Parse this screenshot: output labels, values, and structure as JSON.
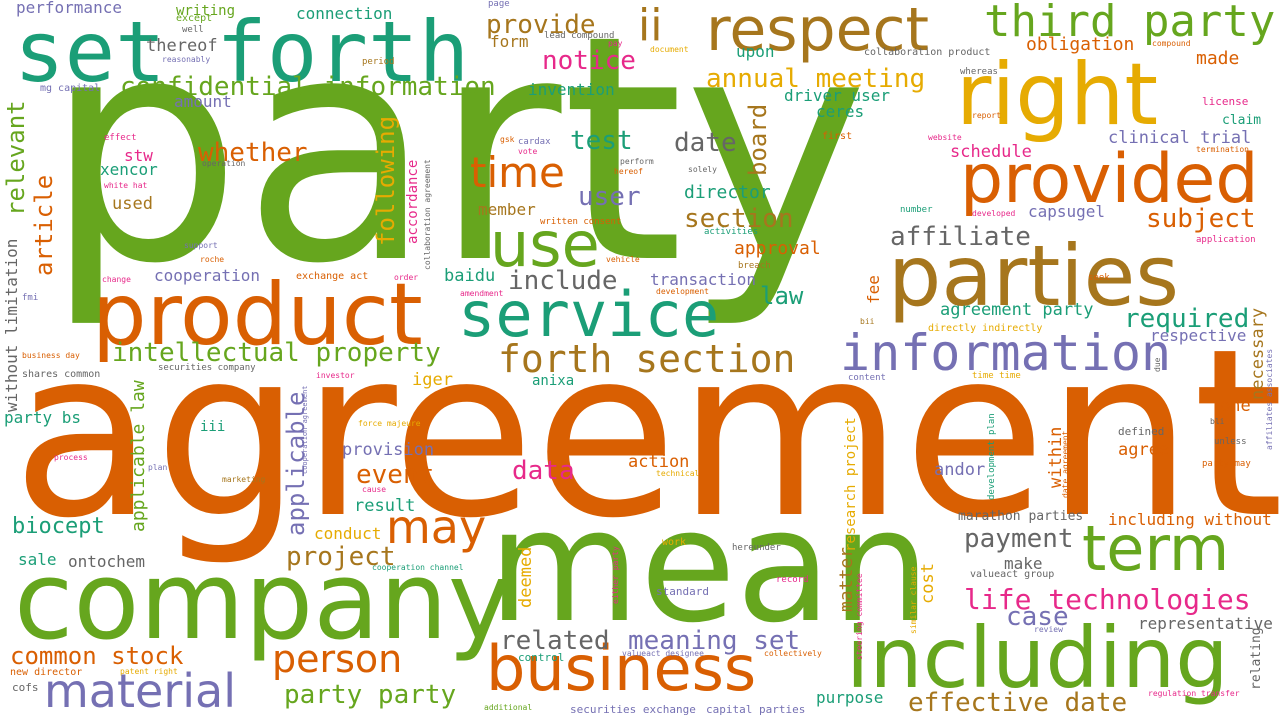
{
  "palette": {
    "green": "#66a61e",
    "orange": "#d95f02",
    "teal": "#1b9e77",
    "purple": "#7570b3",
    "gold": "#e6ab02",
    "brown": "#a6761d",
    "pink": "#e7298a",
    "gray": "#666666"
  },
  "words": [
    "party",
    "agreement",
    "mean",
    "company",
    "set forth",
    "including",
    "product",
    "parties",
    "respect",
    "right",
    "business",
    "provided",
    "service",
    "information",
    "use",
    "term",
    "third party",
    "material",
    "person",
    "forth section",
    "may",
    "time",
    "ii",
    "life technologies",
    "intellectual property",
    "confidential information",
    "annual meeting",
    "common stock",
    "payment",
    "related",
    "meaning set",
    "party party",
    "effective date",
    "project",
    "notice",
    "provide",
    "test",
    "date",
    "section",
    "affiliate",
    "include",
    "user",
    "whether",
    "subject",
    "required",
    "biocept",
    "event",
    "data",
    "case",
    "law",
    "relevant",
    "article",
    "following",
    "board",
    "applicable",
    "applicable law",
    "obligation",
    "made",
    "capsugel",
    "agreement party",
    "result",
    "provision",
    "action",
    "conduct",
    "deemed",
    "matter",
    "within",
    "necessary",
    "agree",
    "one",
    "andor",
    "respective",
    "representative",
    "including without",
    "marathon parties",
    "director",
    "member",
    "cooperation",
    "transaction",
    "approval",
    "clinical trial",
    "schedule",
    "used",
    "stw",
    "xencor",
    "thereof",
    "amount",
    "performance",
    "writing",
    "connection",
    "form",
    "upon",
    "invention",
    "driver user",
    "ceres",
    "baidu",
    "sale",
    "ontochem",
    "iger",
    "anixa",
    "party bs",
    "iii",
    "fee",
    "cost",
    "purpose",
    "make",
    "research project",
    "without limitation",
    "accordance",
    "capital parties",
    "securities exchange",
    "whereas",
    "license",
    "claim",
    "compound",
    "collaboration product",
    "lead compound",
    "page",
    "pay",
    "document",
    "except",
    "well",
    "reasonably",
    "mg capital",
    "period",
    "effect",
    "white hat",
    "cardax",
    "vote",
    "gsk",
    "perform",
    "hereof",
    "solely",
    "written consent",
    "first",
    "website",
    "report",
    "termination",
    "application",
    "developed",
    "number",
    "activities",
    "support",
    "roche",
    "change",
    "collaboration agreement",
    "operation",
    "vehicle",
    "breach",
    "exchange act",
    "order",
    "development",
    "amendment",
    "seek",
    "bii",
    "directly indirectly",
    "fmi",
    "business day",
    "shares common",
    "securities company",
    "investor",
    "content",
    "time time",
    "due",
    "force majeure",
    "defined",
    "bli",
    "unless",
    "affiliates associates",
    "process",
    "plan",
    "cause",
    "marketing",
    "cooperation agreement",
    "technical",
    "development plan",
    "date agreement",
    "party may",
    "cooperation channel",
    "work",
    "either party",
    "hereunder",
    "standard",
    "record",
    "similar clause",
    "steering committee",
    "valueact group",
    "review",
    "relating",
    "control",
    "new director",
    "patent right",
    "cofs",
    "valueact designee",
    "collectively",
    "additional",
    "regulation transfer"
  ]
}
